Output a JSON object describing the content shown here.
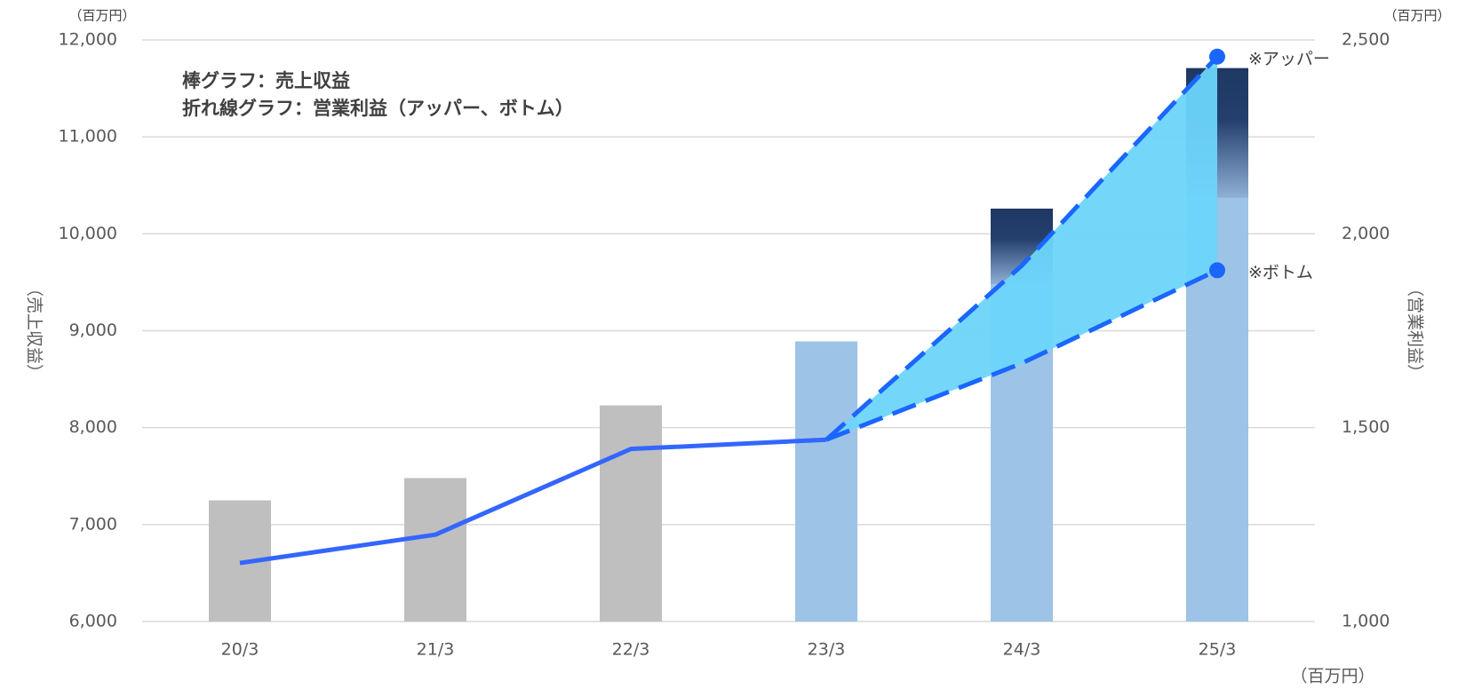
{
  "chart_data": {
    "type": "bar-line",
    "annotations": [
      "棒グラフ：売上収益",
      "折れ線グラフ：営業利益（アッパー、ボトム）"
    ],
    "unit_left": "（百万円）",
    "unit_right": "（百万円）",
    "unit_bottom": "（百万円）",
    "ylabel": "（売上収益）",
    "y2label": "（営業利益）",
    "categories": [
      "20/3",
      "21/3",
      "22/3",
      "23/3",
      "24/3",
      "25/3"
    ],
    "ylim": [
      6000,
      12000
    ],
    "yticks": [
      {
        "value": 6000,
        "label": "6,000"
      },
      {
        "value": 7000,
        "label": "7,000"
      },
      {
        "value": 8000,
        "label": "8,000"
      },
      {
        "value": 9000,
        "label": "9,000"
      },
      {
        "value": 10000,
        "label": "10,000"
      },
      {
        "value": 11000,
        "label": "11,000"
      },
      {
        "value": 12000,
        "label": "12,000"
      }
    ],
    "y2lim": [
      1000,
      2500
    ],
    "y2ticks": [
      {
        "value": 1000,
        "label": "1,000"
      },
      {
        "value": 1500,
        "label": "1,500"
      },
      {
        "value": 2000,
        "label": "2,000"
      },
      {
        "value": 2500,
        "label": "2,500"
      }
    ],
    "grid": true,
    "bars": [
      {
        "colors": [
          "#bfbfbf",
          "#bfbfbf",
          "#bfbfbf",
          "#9dc3e6",
          "#9dc3e6",
          "#9dc3e6"
        ],
        "values": [
          7250,
          7480,
          8230,
          8890,
          9480,
          10370
        ]
      },
      {
        "color": "#1f3864",
        "values": [
          null,
          null,
          null,
          null,
          780,
          1340
        ]
      }
    ],
    "series": [
      {
        "color": "#3366ff",
        "style": "solid",
        "axis": "y2",
        "values": [
          1151,
          1224,
          1445,
          1469,
          null,
          null
        ]
      },
      {
        "name": "※アッパー",
        "color": "#1a66ff",
        "style": "dashed",
        "axis": "y2",
        "values": [
          null,
          null,
          null,
          1469,
          1918,
          2457
        ]
      },
      {
        "name": "※ボトム",
        "color": "#1a66ff",
        "style": "dashed",
        "axis": "y2",
        "values": [
          null,
          null,
          null,
          1469,
          1666,
          1906
        ]
      }
    ],
    "range_color": "#6dd5fa"
  }
}
